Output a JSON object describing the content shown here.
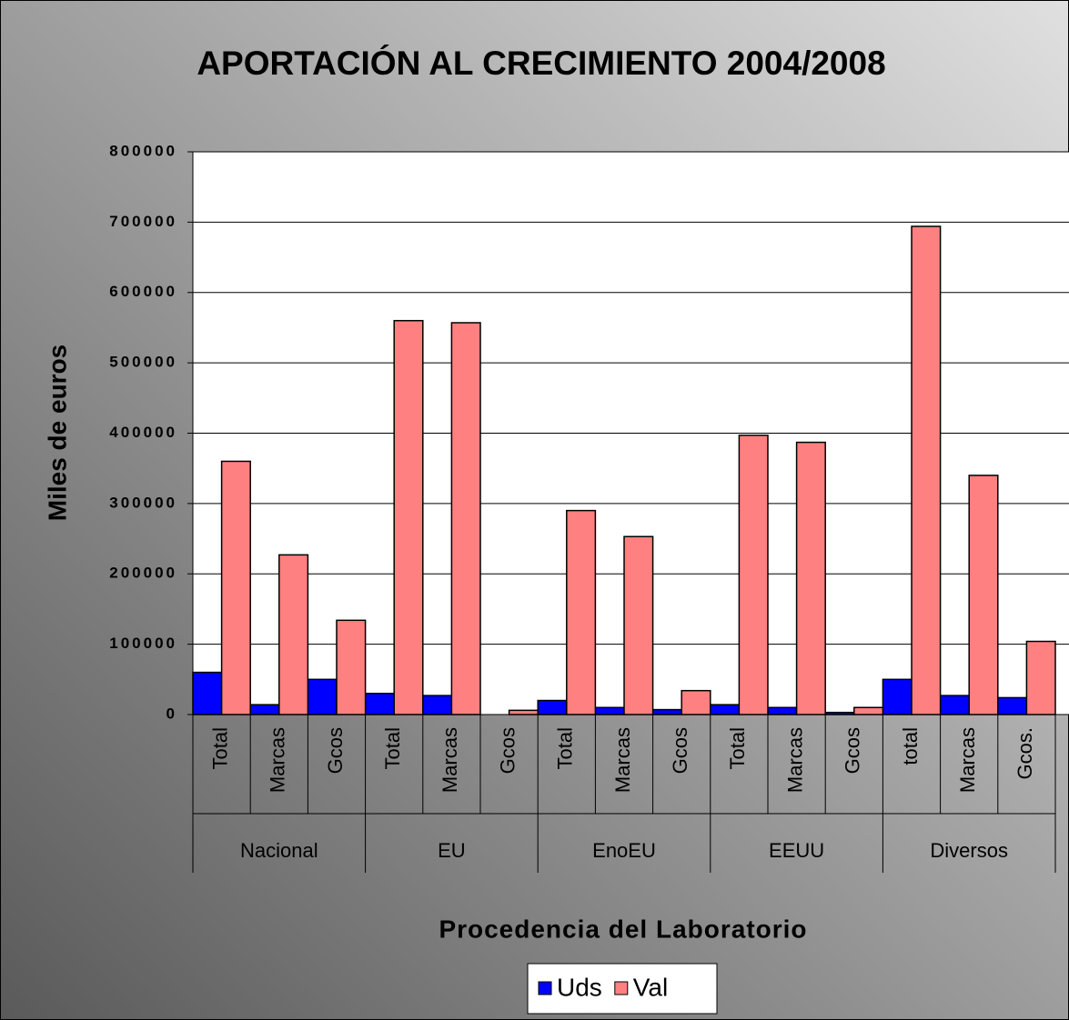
{
  "chart_data": {
    "type": "bar",
    "title": "APORTACIÓN AL CRECIMIENTO 2004/2008",
    "y_label": "Miles de euros",
    "x_label": "Procedencia del Laboratorio",
    "groups": [
      "Nacional",
      "EU",
      "EnoEU",
      "EEUU",
      "Diversos"
    ],
    "categories": [
      "Total",
      "Marcas",
      "Gcos",
      "Total",
      "Marcas",
      "Gcos",
      "Total",
      "Marcas",
      "Gcos",
      "Total",
      "Marcas",
      "Gcos",
      "total",
      "Marcas",
      "Gcos."
    ],
    "series": [
      {
        "name": "Uds",
        "color": "#0000ff",
        "values": [
          60000,
          14000,
          50000,
          30000,
          27000,
          0,
          20000,
          10000,
          7000,
          14000,
          10000,
          3000,
          50000,
          27000,
          24000
        ]
      },
      {
        "name": "Val",
        "color": "#ff8080",
        "values": [
          360000,
          227000,
          134000,
          560000,
          557000,
          6000,
          290000,
          253000,
          34000,
          397000,
          387000,
          10000,
          694000,
          340000,
          104000
        ]
      }
    ],
    "ylim": [
      0,
      800000
    ],
    "yticks": [
      0,
      100000,
      200000,
      300000,
      400000,
      500000,
      600000,
      700000,
      800000
    ],
    "grid": true
  }
}
